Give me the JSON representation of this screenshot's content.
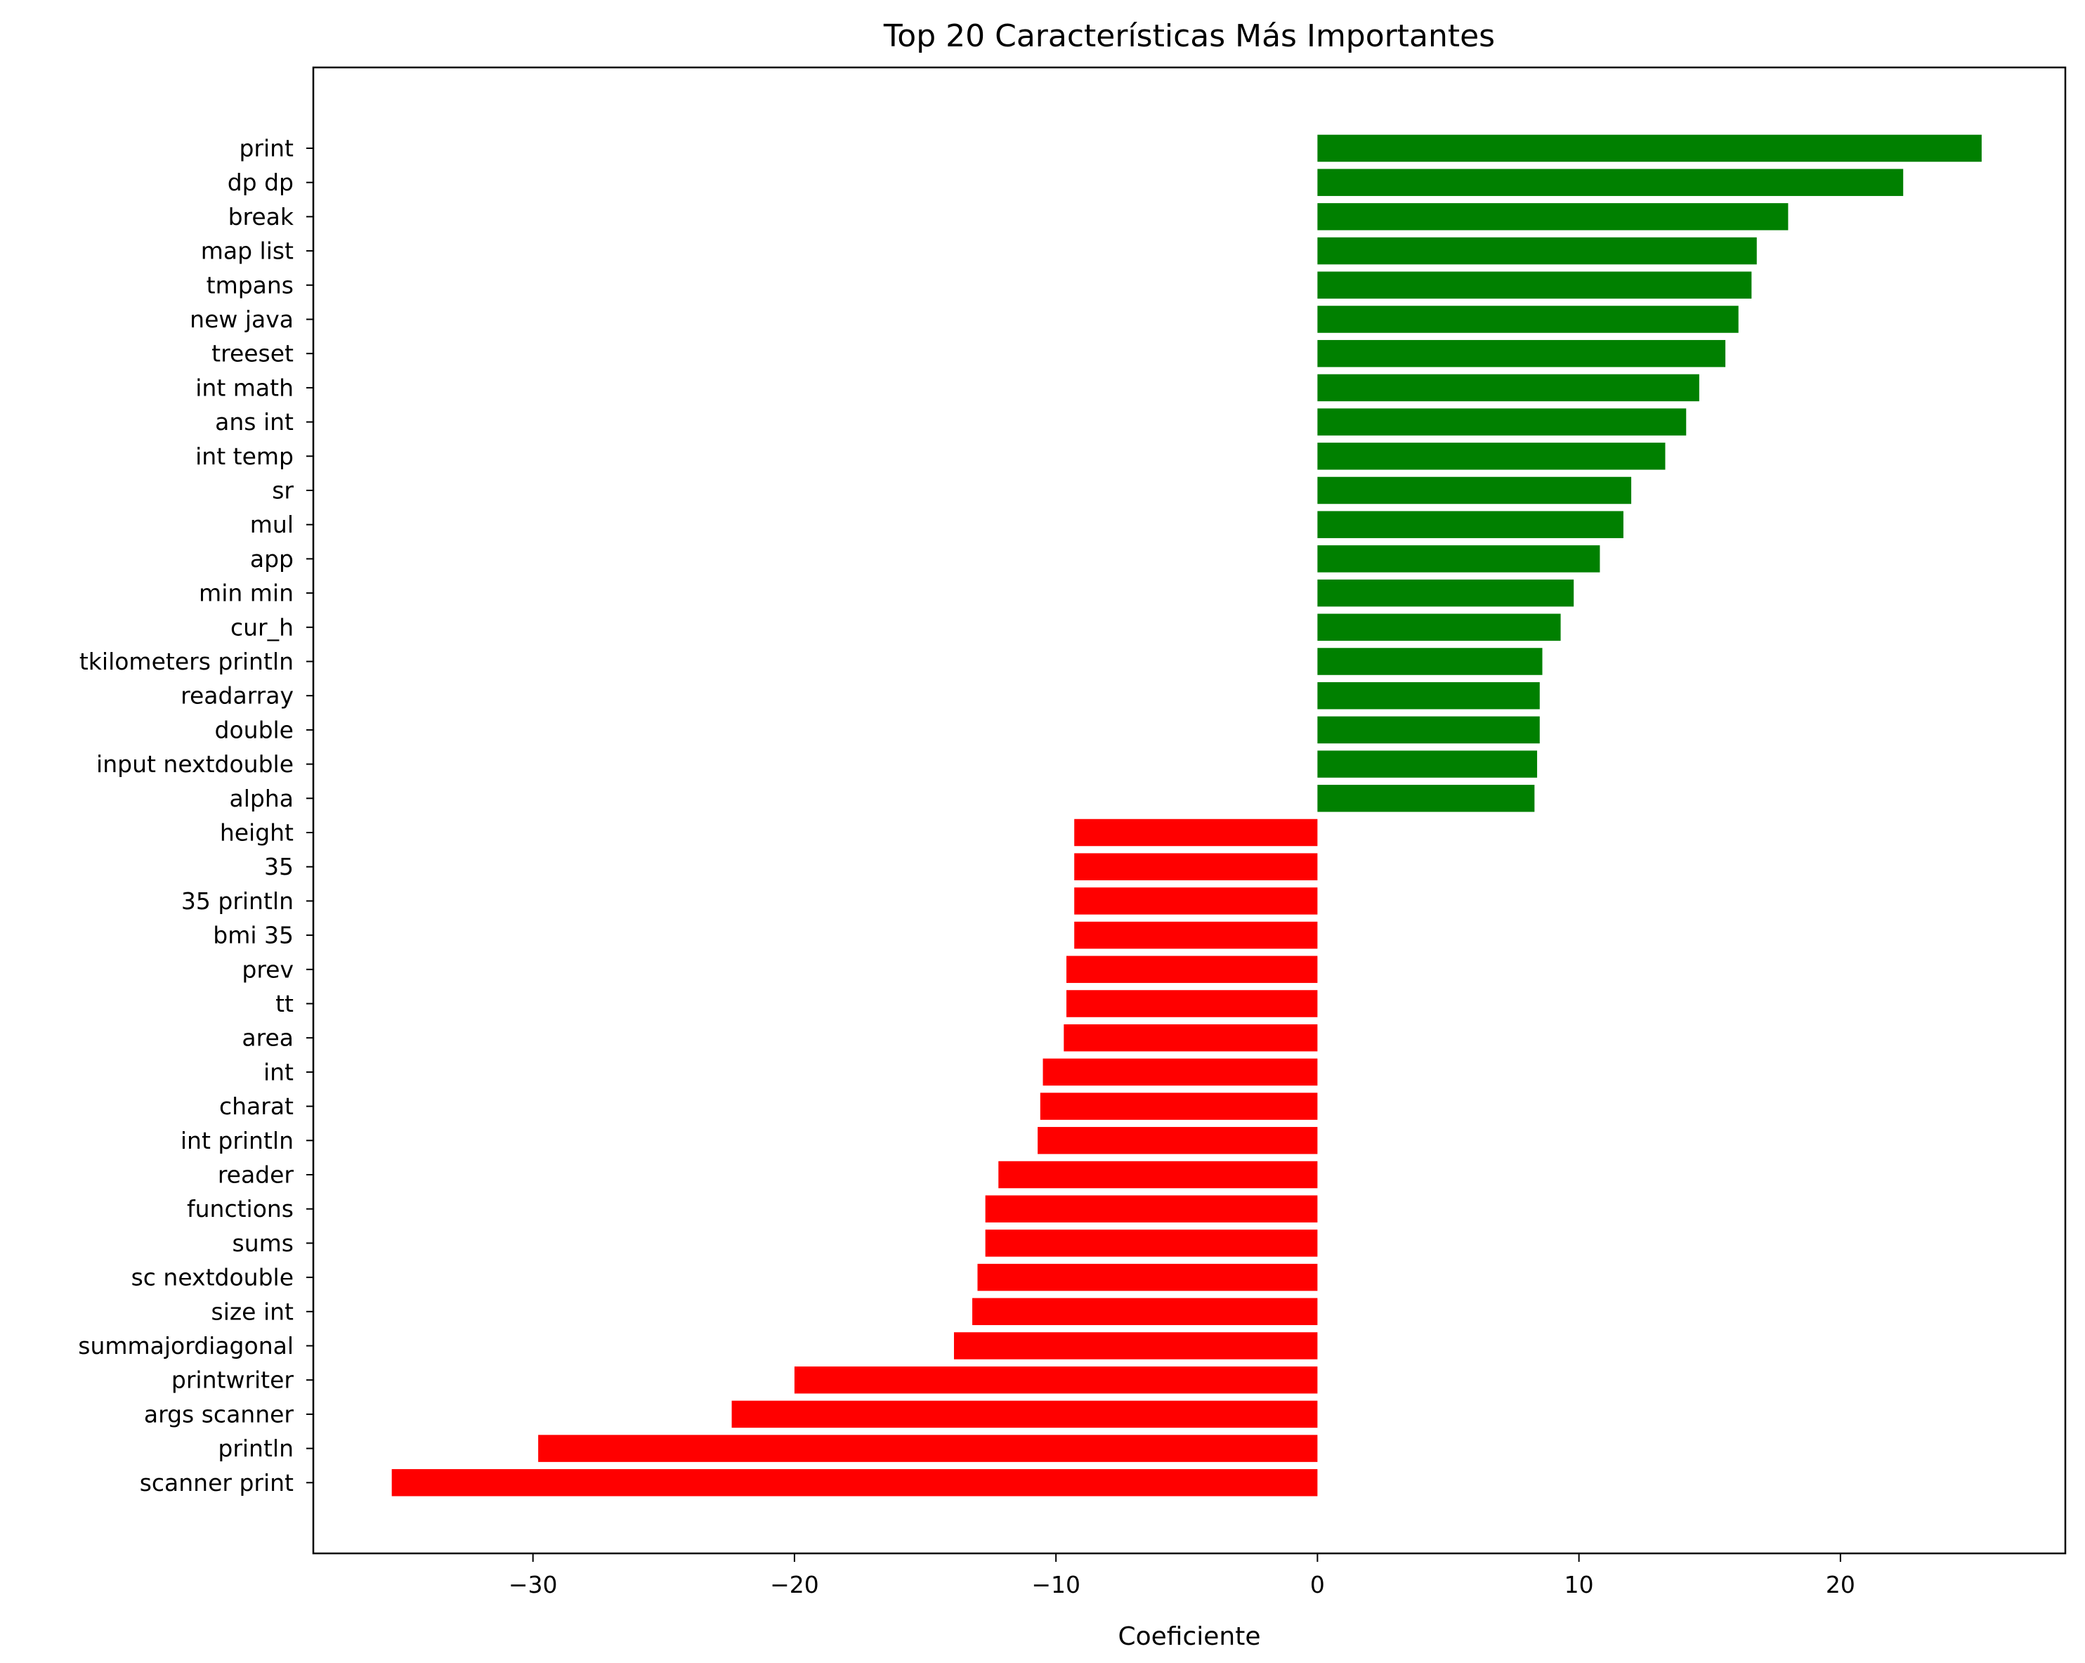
{
  "chart_data": {
    "type": "bar",
    "orientation": "horizontal",
    "title": "Top 20 Características Más Importantes",
    "xlabel": "Coeficiente",
    "ylabel": "",
    "xlim": [
      -38.4,
      28.6
    ],
    "xticks": [
      -30,
      -20,
      -10,
      0,
      10,
      20
    ],
    "xtick_labels": [
      "−30",
      "−20",
      "−10",
      "0",
      "10",
      "20"
    ],
    "grid": false,
    "legend": "none",
    "colors": {
      "positive": "#008000",
      "negative": "#ff0000"
    },
    "categories": [
      "print",
      "dp dp",
      "break",
      "map list",
      "tmpans",
      "new java",
      "treeset",
      "int math",
      "ans int",
      "int temp",
      "sr",
      "mul",
      "app",
      "min min",
      "cur_h",
      "tkilometers println",
      "readarray",
      "double",
      "input nextdouble",
      "alpha",
      "height",
      "35",
      "35 println",
      "bmi 35",
      "prev",
      "tt",
      "area",
      "int",
      "charat",
      "int println",
      "reader",
      "functions",
      "sums",
      "sc nextdouble",
      "size int",
      "summajordiagonal",
      "printwriter",
      "args scanner",
      "println",
      "scanner print"
    ],
    "values": [
      25.4,
      22.4,
      18.0,
      16.8,
      16.6,
      16.1,
      15.6,
      14.6,
      14.1,
      13.3,
      12.0,
      11.7,
      10.8,
      9.8,
      9.3,
      8.6,
      8.5,
      8.5,
      8.4,
      8.3,
      -9.3,
      -9.3,
      -9.3,
      -9.3,
      -9.6,
      -9.6,
      -9.7,
      -10.5,
      -10.6,
      -10.7,
      -12.2,
      -12.7,
      -12.7,
      -13.0,
      -13.2,
      -13.9,
      -20.0,
      -22.4,
      -29.8,
      -35.4
    ]
  }
}
